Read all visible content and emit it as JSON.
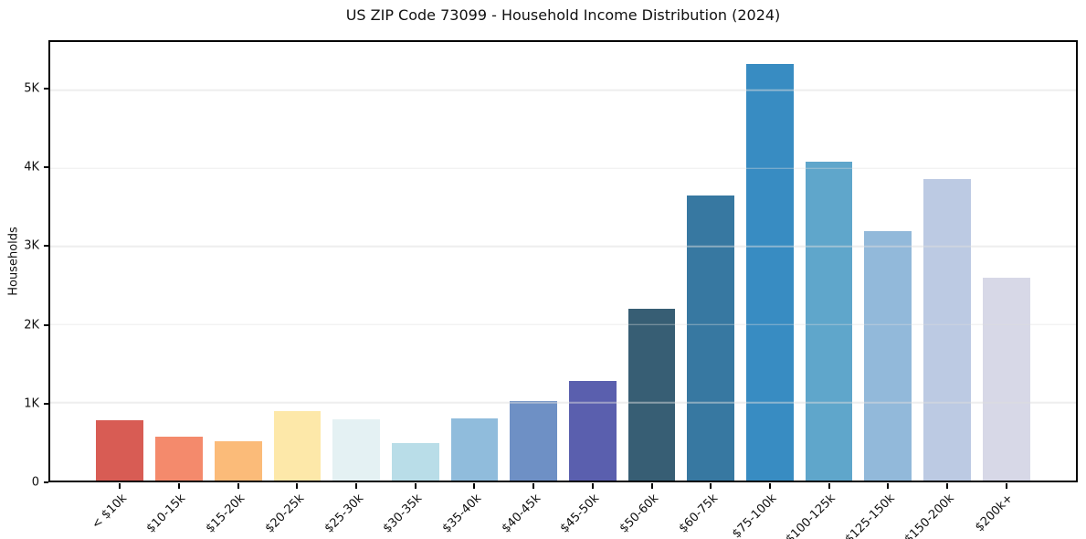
{
  "page": {
    "background_color": "#ffffff",
    "text_color": "#111111"
  },
  "chart_data": {
    "type": "bar",
    "title": "US ZIP Code 73099 - Household Income Distribution (2024)",
    "xlabel": "",
    "ylabel": "Households",
    "categories": [
      "< $10k",
      "$10-15k",
      "$15-20k",
      "$20-25k",
      "$25-30k",
      "$30-35k",
      "$35-40k",
      "$40-45k",
      "$45-50k",
      "$50-60k",
      "$60-75k",
      "$75-100k",
      "$100-125k",
      "$125-150k",
      "$150-200k",
      "$200k+"
    ],
    "values": [
      770,
      560,
      500,
      890,
      780,
      480,
      795,
      1015,
      1270,
      2200,
      3650,
      5340,
      4080,
      3190,
      3860,
      2600
    ],
    "bar_colors": [
      "#d85c54",
      "#f48a6c",
      "#fbbb79",
      "#fde8a9",
      "#e4f1f3",
      "#b9dde8",
      "#90bcdc",
      "#6e90c5",
      "#5a5fae",
      "#375e74",
      "#3778a1",
      "#388cc2",
      "#5fa6cb",
      "#92b9da",
      "#bccae3",
      "#d7d8e7"
    ],
    "ylim": [
      0,
      5615
    ],
    "yticks": [
      {
        "value": 0,
        "label": "0"
      },
      {
        "value": 1000,
        "label": "1K"
      },
      {
        "value": 2000,
        "label": "2K"
      },
      {
        "value": 3000,
        "label": "3K"
      },
      {
        "value": 4000,
        "label": "4K"
      },
      {
        "value": 5000,
        "label": "5K"
      }
    ],
    "grid": "horizontal",
    "legend_position": "none",
    "spine_color": "#000000",
    "grid_color": "#dedede"
  }
}
